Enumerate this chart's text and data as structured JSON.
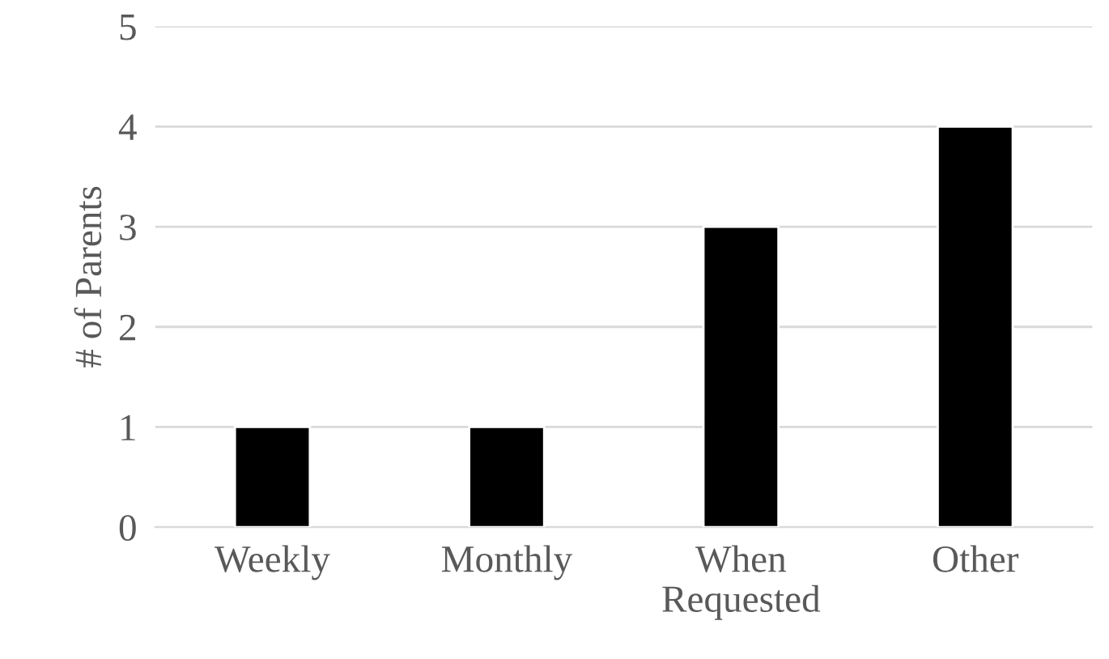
{
  "chart_data": {
    "type": "bar",
    "categories": [
      "Weekly",
      "Monthly",
      "When\nRequested",
      "Other"
    ],
    "values": [
      1,
      1,
      3,
      4
    ],
    "color": "#000000",
    "ylabel": "# of Parents",
    "ylim": [
      0,
      5
    ],
    "yticks": [
      0,
      1,
      2,
      3,
      4,
      5
    ],
    "grid": "y",
    "legend": false
  }
}
